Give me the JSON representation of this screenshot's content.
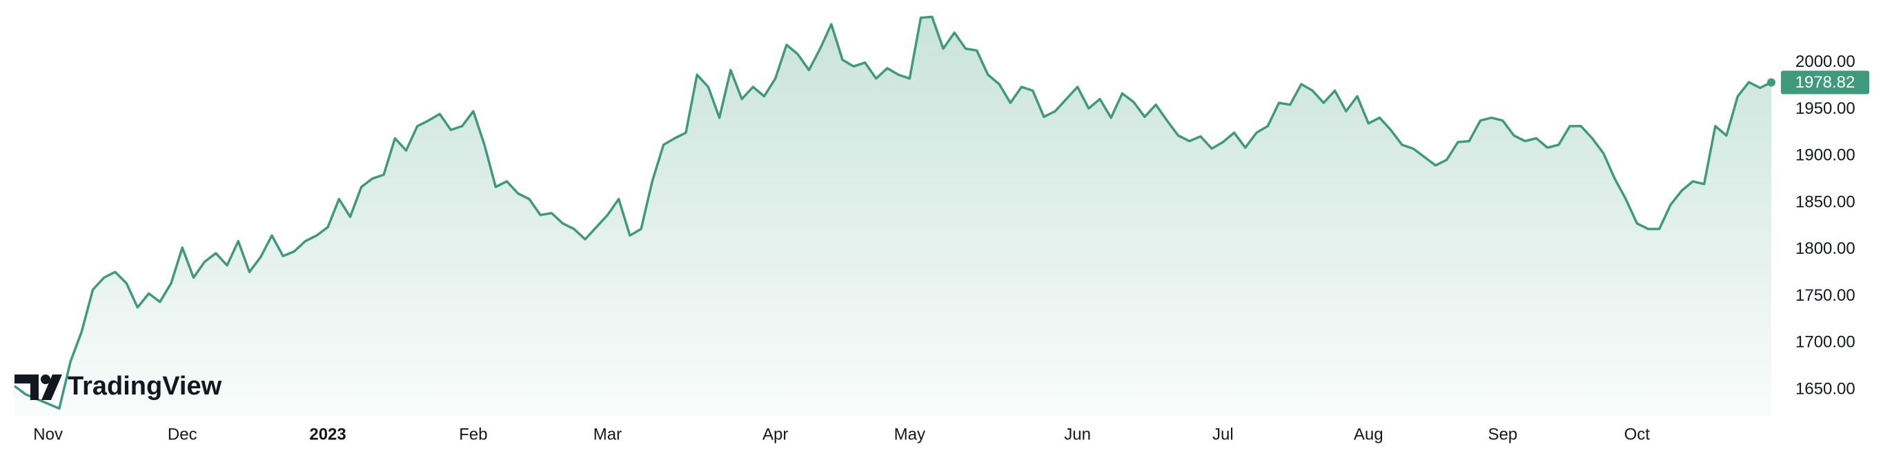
{
  "chart_data": {
    "type": "area",
    "watermark": "TradingView",
    "color": "#3f9a7c",
    "grid": false,
    "categories": [
      null,
      null,
      null,
      "Nov",
      null,
      null,
      null,
      null,
      null,
      null,
      null,
      null,
      null,
      null,
      null,
      "Dec",
      null,
      null,
      null,
      null,
      null,
      null,
      null,
      null,
      null,
      null,
      null,
      null,
      "2023",
      null,
      null,
      null,
      null,
      null,
      null,
      null,
      null,
      null,
      null,
      null,
      null,
      "Feb",
      null,
      null,
      null,
      null,
      null,
      null,
      null,
      null,
      null,
      null,
      null,
      "Mar",
      null,
      null,
      null,
      null,
      null,
      null,
      null,
      null,
      null,
      null,
      null,
      null,
      null,
      null,
      "Apr",
      null,
      null,
      null,
      null,
      null,
      null,
      null,
      null,
      null,
      null,
      null,
      "May",
      null,
      null,
      null,
      null,
      null,
      null,
      null,
      null,
      null,
      null,
      null,
      null,
      null,
      null,
      "Jun",
      null,
      null,
      null,
      null,
      null,
      null,
      null,
      null,
      null,
      null,
      null,
      null,
      "Jul",
      null,
      null,
      null,
      null,
      null,
      null,
      null,
      null,
      null,
      null,
      null,
      null,
      "Aug",
      null,
      null,
      null,
      null,
      null,
      null,
      null,
      null,
      null,
      null,
      null,
      "Sep",
      null,
      null,
      null,
      null,
      null,
      null,
      null,
      null,
      null,
      null,
      null,
      "Oct",
      null,
      null,
      null,
      null,
      null,
      null,
      null,
      null,
      null,
      null,
      null,
      null
    ],
    "values": [
      1654,
      1645,
      1640,
      1635,
      1630,
      1680,
      1712,
      1757,
      1770,
      1776,
      1764,
      1738,
      1753,
      1744,
      1764,
      1802,
      1770,
      1787,
      1796,
      1783,
      1809,
      1776,
      1792,
      1815,
      1793,
      1798,
      1809,
      1815,
      1824,
      1854,
      1835,
      1867,
      1876,
      1880,
      1919,
      1906,
      1932,
      1938,
      1945,
      1928,
      1932,
      1948,
      1912,
      1867,
      1873,
      1860,
      1854,
      1837,
      1839,
      1828,
      1822,
      1811,
      1824,
      1837,
      1854,
      1815,
      1822,
      1873,
      1912,
      1919,
      1925,
      1987,
      1974,
      1941,
      1992,
      1961,
      1974,
      1964,
      1983,
      2019,
      2009,
      1992,
      2015,
      2041,
      2003,
      1996,
      2000,
      1983,
      1994,
      1987,
      1983,
      2048,
      2049,
      2015,
      2032,
      2015,
      2013,
      1987,
      1977,
      1957,
      1974,
      1970,
      1942,
      1948,
      1961,
      1974,
      1951,
      1961,
      1941,
      1967,
      1958,
      1942,
      1955,
      1938,
      1922,
      1916,
      1921,
      1908,
      1915,
      1925,
      1909,
      1925,
      1932,
      1957,
      1955,
      1977,
      1970,
      1957,
      1970,
      1948,
      1964,
      1935,
      1941,
      1928,
      1912,
      1908,
      1899,
      1890,
      1896,
      1915,
      1916,
      1938,
      1941,
      1938,
      1922,
      1916,
      1919,
      1909,
      1912,
      1932,
      1932,
      1919,
      1903,
      1876,
      1854,
      1828,
      1822,
      1822,
      1848,
      1863,
      1873,
      1870,
      1932,
      1922,
      1964,
      1979,
      1973,
      1978.82
    ],
    "ylim": [
      1622,
      2067
    ],
    "yticks": [
      {
        "value": 1650,
        "label": "1650.00"
      },
      {
        "value": 1700,
        "label": "1700.00"
      },
      {
        "value": 1750,
        "label": "1750.00"
      },
      {
        "value": 1800,
        "label": "1800.00"
      },
      {
        "value": 1850,
        "label": "1850.00"
      },
      {
        "value": 1900,
        "label": "1900.00"
      },
      {
        "value": 1950,
        "label": "1950.00"
      },
      {
        "value": 2000,
        "label": "2000.00"
      }
    ]
  }
}
